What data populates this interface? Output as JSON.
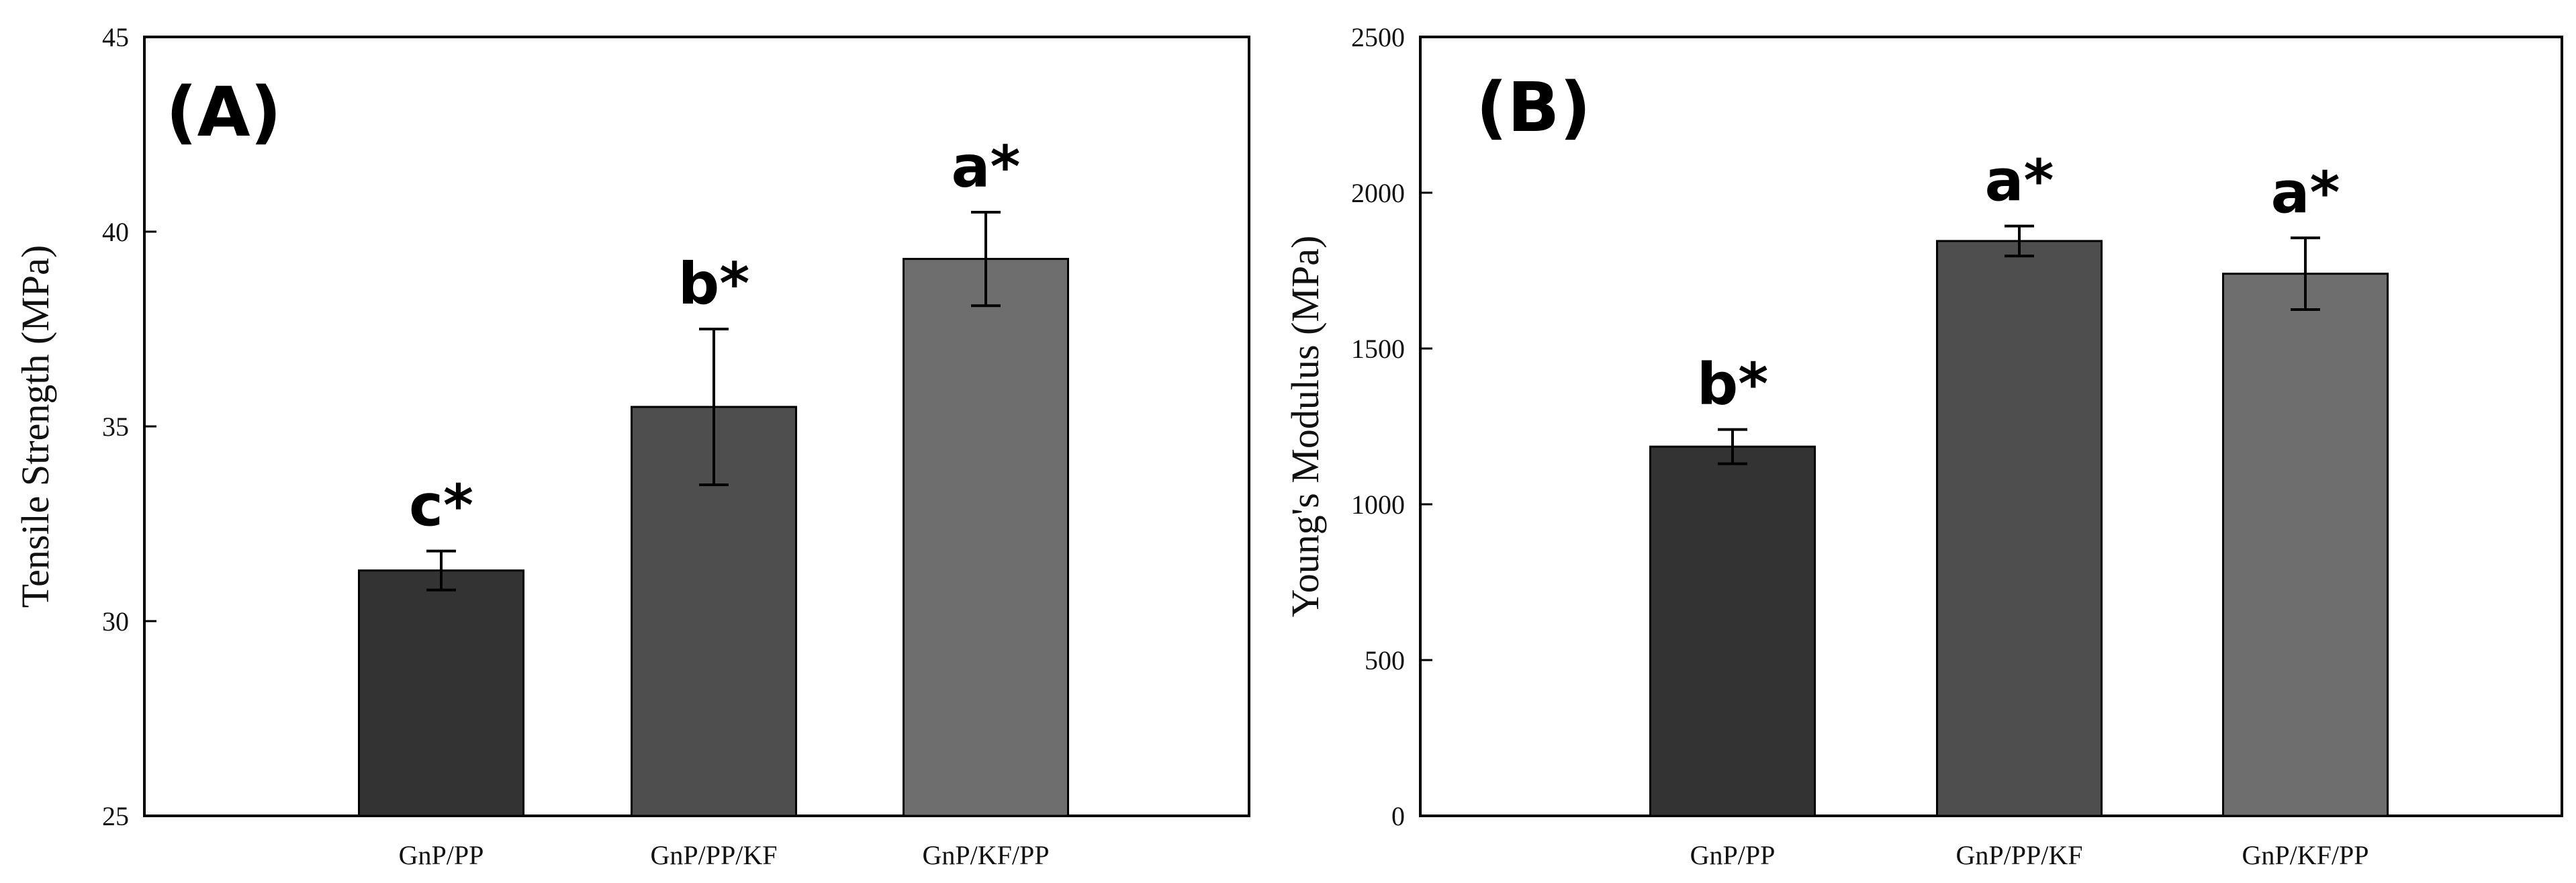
{
  "chart_data": [
    {
      "type": "bar",
      "panel_label": "(A)",
      "title": "",
      "xlabel": "",
      "ylabel": "Tensile Strength (MPa)",
      "ylim": [
        25,
        45
      ],
      "yticks": [
        "25",
        "30",
        "35",
        "40",
        "45"
      ],
      "categories": [
        "GnP/PP",
        "GnP/PP/KF",
        "GnP/KF/PP"
      ],
      "values": [
        31.3,
        35.5,
        39.3
      ],
      "errors": [
        0.5,
        2.0,
        1.2
      ],
      "significance": [
        "c*",
        "b*",
        "a*"
      ],
      "bar_colors": [
        "#333333",
        "#4e4e4e",
        "#6e6e6e"
      ],
      "grid": false
    },
    {
      "type": "bar",
      "panel_label": "(B)",
      "title": "",
      "xlabel": "",
      "ylabel": "Young's Modulus (MPa)",
      "ylim": [
        0,
        2500
      ],
      "yticks": [
        "0",
        "500",
        "1000",
        "1500",
        "2000",
        "2500"
      ],
      "categories": [
        "GnP/PP",
        "GnP/PP/KF",
        "GnP/KF/PP"
      ],
      "values": [
        1185,
        1845,
        1740
      ],
      "errors": [
        55,
        48,
        115
      ],
      "significance": [
        "b*",
        "a*",
        "a*"
      ],
      "bar_colors": [
        "#333333",
        "#4e4e4e",
        "#6e6e6e"
      ],
      "grid": false
    }
  ]
}
